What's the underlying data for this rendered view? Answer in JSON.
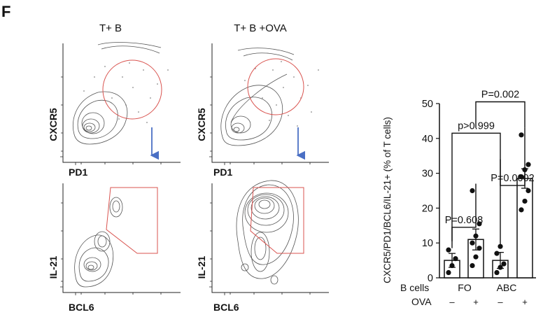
{
  "panel_letter": "F",
  "flow": {
    "titles": [
      "T+ B",
      "T+ B +OVA"
    ],
    "top_axes": {
      "x": "PD1",
      "y": "CXCR5"
    },
    "bottom_axes": {
      "x": "BCL6",
      "y": "IL-21"
    },
    "gate_color": "#d9534f",
    "arrow_color": "#4a6fc4"
  },
  "chart_data": {
    "type": "bar",
    "ylabel": "CXCR5/PD1/BCL6/IL-21+ (% of T cells)",
    "ylim": [
      0,
      50
    ],
    "yticks": [
      0,
      10,
      20,
      30,
      40,
      50
    ],
    "row_labels": [
      "B cells",
      "OVA"
    ],
    "groups": [
      "FO",
      "ABC"
    ],
    "ova": [
      "–",
      "+",
      "–",
      "+"
    ],
    "bars": [
      {
        "mean": 5.0,
        "sem": 2.0,
        "points": [
          1.5,
          3.5,
          5.5,
          8.0
        ]
      },
      {
        "mean": 11.0,
        "sem": 3.0,
        "points": [
          3.5,
          6.0,
          8.5,
          10.0,
          12.0,
          15.5,
          25.0
        ]
      },
      {
        "mean": 5.0,
        "sem": 2.3,
        "points": [
          1.5,
          3.0,
          4.0,
          7.0,
          9.0
        ]
      },
      {
        "mean": 28.5,
        "sem": 2.8,
        "points": [
          19.5,
          22.0,
          25.0,
          29.0,
          31.0,
          32.5,
          41.0
        ]
      }
    ],
    "comparisons": [
      {
        "from": 0,
        "to": 1,
        "label": "P=0.608"
      },
      {
        "from": 2,
        "to": 3,
        "label": "P=0.0002"
      },
      {
        "from": 0,
        "to": 2,
        "label": "p>0.999"
      },
      {
        "from": 1,
        "to": 3,
        "label": "P=0.002"
      }
    ]
  }
}
